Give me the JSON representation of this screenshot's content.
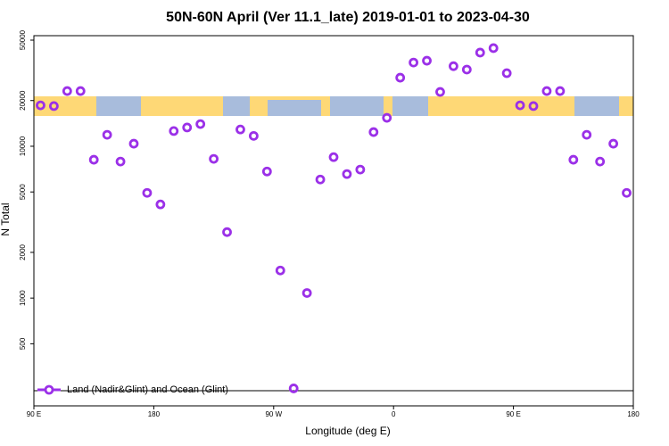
{
  "chart_data": {
    "type": "scatter",
    "title": "50N-60N April (Ver 11.1_late)   2019-01-01 to 2023-04-30",
    "xlabel": "Longitude (deg E)",
    "ylabel": "N Total",
    "x": [
      95,
      105,
      115,
      125,
      135,
      145,
      155,
      165,
      175,
      185,
      195,
      205,
      215,
      225,
      235,
      245,
      255,
      265,
      275,
      285,
      295,
      305,
      315,
      325,
      335,
      345,
      355,
      365,
      375,
      385,
      395,
      405,
      415,
      425,
      435,
      445,
      455,
      465,
      475,
      485,
      495,
      505,
      515,
      525,
      535
    ],
    "series": [
      {
        "name": "Land (Nadir&Glint) and Ocean (Glint)",
        "color": "#9b30e8",
        "values": [
          18600,
          18400,
          23100,
          23100,
          8150,
          11900,
          7930,
          10400,
          4930,
          4140,
          12600,
          13300,
          14000,
          8260,
          2720,
          12900,
          11700,
          6820,
          1520,
          254,
          1080,
          6040,
          8480,
          6560,
          7020,
          12400,
          15400,
          28300,
          35600,
          36600,
          22800,
          33700,
          32000,
          41400,
          44300,
          30300,
          18600,
          18400,
          23100,
          23100,
          8150,
          11900,
          7930,
          10400,
          4930
        ]
      }
    ],
    "xlim": [
      90,
      540
    ],
    "xticks": [
      {
        "value": 90,
        "label": "90 E"
      },
      180,
      {
        "value": 270,
        "label": "90 W"
      },
      {
        "value": 360,
        "label": "0"
      },
      {
        "value": 450,
        "label": "90 E"
      },
      {
        "value": 540,
        "label": "180"
      }
    ],
    "ylim": [
      195,
      53500
    ],
    "ylog": true,
    "yticks": [
      500,
      1000,
      2000,
      5000,
      10000,
      20000,
      50000
    ],
    "legend": "lower left"
  }
}
